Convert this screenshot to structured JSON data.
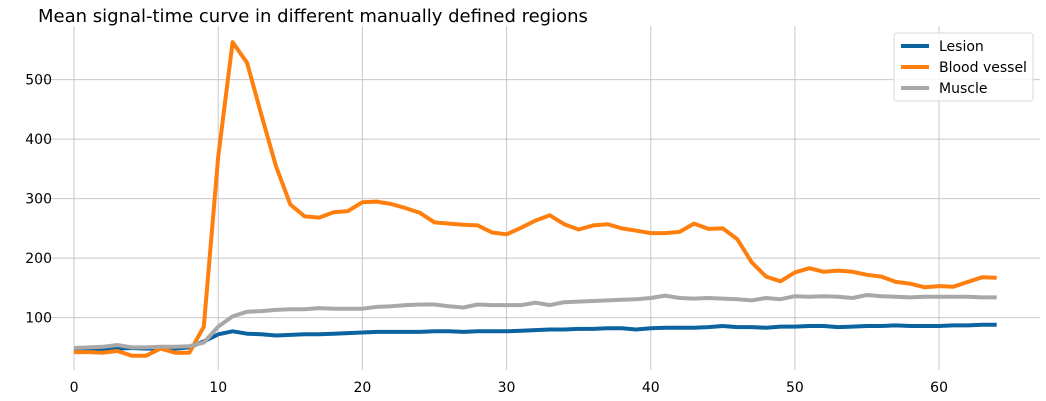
{
  "chart_data": {
    "type": "line",
    "title": "Mean signal-time curve in different manually defined regions",
    "xlabel": "",
    "ylabel": "",
    "xlim": [
      -2.5,
      67
    ],
    "ylim": [
      12,
      590
    ],
    "grid": true,
    "legend_position": "top-right",
    "x_ticks": [
      0,
      10,
      20,
      30,
      40,
      50,
      60
    ],
    "y_ticks": [
      100,
      200,
      300,
      400,
      500
    ],
    "x": [
      0,
      1,
      2,
      3,
      4,
      5,
      6,
      7,
      8,
      9,
      10,
      11,
      12,
      13,
      14,
      15,
      16,
      17,
      18,
      19,
      20,
      21,
      22,
      23,
      24,
      25,
      26,
      27,
      28,
      29,
      30,
      31,
      32,
      33,
      34,
      35,
      36,
      37,
      38,
      39,
      40,
      41,
      42,
      43,
      44,
      45,
      46,
      47,
      48,
      49,
      50,
      51,
      52,
      53,
      54,
      55,
      56,
      57,
      58,
      59,
      60,
      61,
      62,
      63,
      64
    ],
    "series": [
      {
        "name": "Lesion",
        "color": "#0b64a0",
        "values": [
          45,
          46,
          47,
          48,
          49,
          48,
          48,
          48,
          50,
          60,
          72,
          77,
          73,
          72,
          70,
          71,
          72,
          72,
          73,
          74,
          75,
          76,
          76,
          76,
          76,
          77,
          77,
          76,
          77,
          77,
          77,
          78,
          79,
          80,
          80,
          81,
          81,
          82,
          82,
          80,
          82,
          83,
          83,
          83,
          84,
          86,
          84,
          84,
          83,
          85,
          85,
          86,
          86,
          84,
          85,
          86,
          86,
          87,
          86,
          86,
          86,
          87,
          87,
          88,
          88
        ]
      },
      {
        "name": "Blood vessel",
        "color": "#ff7f0e",
        "values": [
          42,
          42,
          41,
          44,
          36,
          36,
          48,
          41,
          41,
          85,
          370,
          563,
          528,
          440,
          355,
          290,
          270,
          268,
          277,
          279,
          294,
          295,
          291,
          284,
          276,
          260,
          258,
          256,
          255,
          243,
          240,
          251,
          263,
          272,
          257,
          248,
          255,
          257,
          250,
          246,
          242,
          242,
          244,
          258,
          249,
          250,
          232,
          193,
          169,
          161,
          176,
          183,
          177,
          179,
          177,
          172,
          169,
          160,
          157,
          151,
          153,
          152,
          160,
          168,
          167
        ]
      },
      {
        "name": "Muscle",
        "color": "#a8a8a8",
        "values": [
          49,
          50,
          51,
          54,
          50,
          50,
          51,
          51,
          52,
          58,
          85,
          102,
          110,
          111,
          113,
          114,
          114,
          116,
          115,
          115,
          115,
          118,
          119,
          121,
          122,
          122,
          119,
          117,
          122,
          121,
          121,
          121,
          125,
          121,
          126,
          127,
          128,
          129,
          130,
          131,
          133,
          137,
          133,
          132,
          133,
          132,
          131,
          129,
          133,
          131,
          136,
          135,
          136,
          135,
          133,
          138,
          136,
          135,
          134,
          135,
          135,
          135,
          135,
          134,
          134
        ]
      }
    ]
  }
}
